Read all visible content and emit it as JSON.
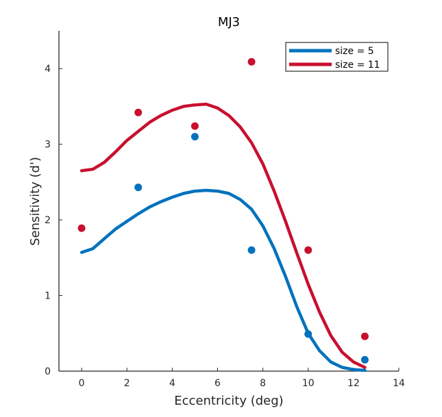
{
  "chart_data": {
    "type": "scatter",
    "title": "MJ3",
    "xlabel": "Eccentricity (deg)",
    "ylabel": "Sensitivity (d')",
    "xlim": [
      -1,
      14
    ],
    "ylim": [
      0,
      4.5
    ],
    "xticks": [
      "0",
      "2",
      "4",
      "6",
      "8",
      "10",
      "12",
      "14"
    ],
    "yticks": [
      "0",
      "1",
      "2",
      "3",
      "4"
    ],
    "grid": false,
    "legend_position": "top-right",
    "series": [
      {
        "name": "size = 5",
        "color": "#0072BD",
        "points": [
          {
            "x": 0,
            "y": null
          },
          {
            "x": 2.5,
            "y": 2.43
          },
          {
            "x": 5,
            "y": 3.1
          },
          {
            "x": 7.5,
            "y": 1.6
          },
          {
            "x": 10,
            "y": 0.49
          },
          {
            "x": 12.5,
            "y": 0.15
          }
        ],
        "fit": [
          {
            "x": 0,
            "y": 1.57
          },
          {
            "x": 0.5,
            "y": 1.62
          },
          {
            "x": 1,
            "y": 1.75
          },
          {
            "x": 1.5,
            "y": 1.88
          },
          {
            "x": 2,
            "y": 1.98
          },
          {
            "x": 2.5,
            "y": 2.08
          },
          {
            "x": 3,
            "y": 2.17
          },
          {
            "x": 3.5,
            "y": 2.24
          },
          {
            "x": 4,
            "y": 2.3
          },
          {
            "x": 4.5,
            "y": 2.35
          },
          {
            "x": 5,
            "y": 2.38
          },
          {
            "x": 5.5,
            "y": 2.39
          },
          {
            "x": 6,
            "y": 2.38
          },
          {
            "x": 6.5,
            "y": 2.35
          },
          {
            "x": 7,
            "y": 2.27
          },
          {
            "x": 7.5,
            "y": 2.14
          },
          {
            "x": 8,
            "y": 1.92
          },
          {
            "x": 8.5,
            "y": 1.62
          },
          {
            "x": 9,
            "y": 1.25
          },
          {
            "x": 9.5,
            "y": 0.85
          },
          {
            "x": 10,
            "y": 0.5
          },
          {
            "x": 10.5,
            "y": 0.27
          },
          {
            "x": 11,
            "y": 0.12
          },
          {
            "x": 11.5,
            "y": 0.05
          },
          {
            "x": 12,
            "y": 0.02
          },
          {
            "x": 12.5,
            "y": 0.01
          }
        ]
      },
      {
        "name": "size = 11",
        "color": "#C8102E",
        "points": [
          {
            "x": 0,
            "y": 1.89
          },
          {
            "x": 2.5,
            "y": 3.42
          },
          {
            "x": 5,
            "y": 3.24
          },
          {
            "x": 7.5,
            "y": 4.09
          },
          {
            "x": 10,
            "y": 1.6
          },
          {
            "x": 12.5,
            "y": 0.46
          }
        ],
        "fit": [
          {
            "x": 0,
            "y": 2.65
          },
          {
            "x": 0.5,
            "y": 2.67
          },
          {
            "x": 1,
            "y": 2.76
          },
          {
            "x": 1.5,
            "y": 2.9
          },
          {
            "x": 2,
            "y": 3.05
          },
          {
            "x": 2.5,
            "y": 3.17
          },
          {
            "x": 3,
            "y": 3.29
          },
          {
            "x": 3.5,
            "y": 3.38
          },
          {
            "x": 4,
            "y": 3.45
          },
          {
            "x": 4.5,
            "y": 3.5
          },
          {
            "x": 5,
            "y": 3.52
          },
          {
            "x": 5.5,
            "y": 3.53
          },
          {
            "x": 6,
            "y": 3.48
          },
          {
            "x": 6.5,
            "y": 3.38
          },
          {
            "x": 7,
            "y": 3.23
          },
          {
            "x": 7.5,
            "y": 3.02
          },
          {
            "x": 8,
            "y": 2.74
          },
          {
            "x": 8.5,
            "y": 2.38
          },
          {
            "x": 9,
            "y": 1.98
          },
          {
            "x": 9.5,
            "y": 1.56
          },
          {
            "x": 10,
            "y": 1.15
          },
          {
            "x": 10.5,
            "y": 0.78
          },
          {
            "x": 11,
            "y": 0.47
          },
          {
            "x": 11.5,
            "y": 0.25
          },
          {
            "x": 12,
            "y": 0.12
          },
          {
            "x": 12.5,
            "y": 0.05
          }
        ]
      }
    ]
  }
}
